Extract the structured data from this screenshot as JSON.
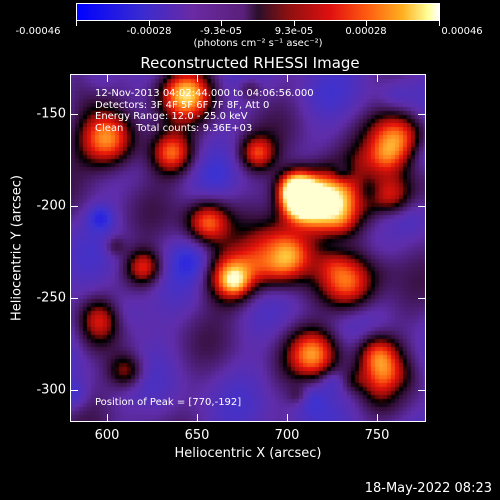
{
  "colorbar": {
    "tick_labels": [
      "-0.00046",
      "-0.00028",
      "-9.3e-05",
      "9.3e-05",
      "0.00028",
      "0.00046"
    ],
    "units": "(photons cm⁻² s⁻¹ asec⁻²)"
  },
  "title": "Reconstructed RHESSI Image",
  "info": {
    "time_range": "12-Nov-2013 04:02:44.000 to 04:06:56.000",
    "detectors": "Detectors: 3F 4F 5F 6F 7F 8F, Att 0",
    "energy": "Energy Range: 12.0 - 25.0 keV",
    "algorithm": "Clean    Total counts: 9.36E+03"
  },
  "peak": "Position of Peak = [770,-192]",
  "axes": {
    "xlabel": "Heliocentric X (arcsec)",
    "ylabel": "Heliocentric Y (arcsec)",
    "x_ticks": [
      "600",
      "650",
      "700",
      "750"
    ],
    "y_ticks": [
      "-150",
      "-200",
      "-250",
      "-300"
    ],
    "xlim": [
      585,
      775
    ],
    "ylim": [
      -320,
      -130
    ]
  },
  "date_stamp": "18-May-2022 08:23",
  "colors": {
    "background": "#000000",
    "low": "#0000ff",
    "mid": "#5a1f7a",
    "high": "#ffff99"
  },
  "image_seed": 7
}
